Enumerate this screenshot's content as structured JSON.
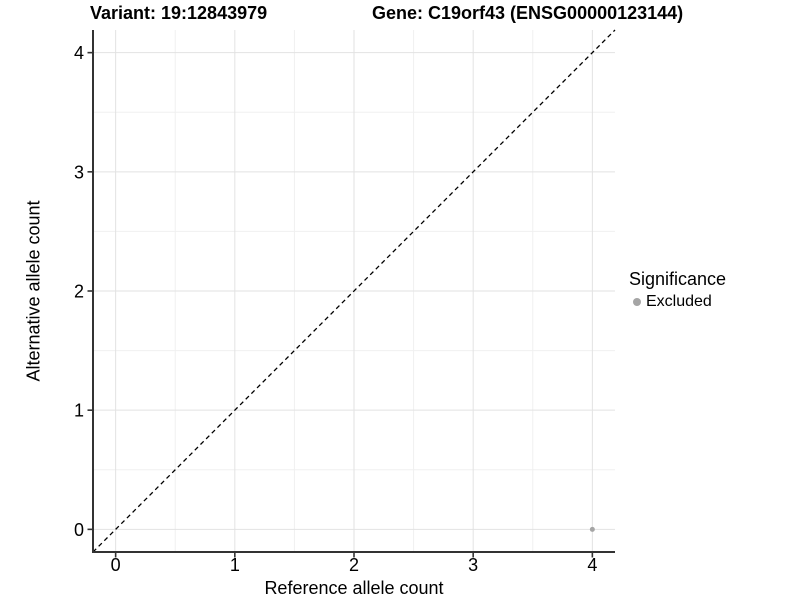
{
  "chart_data": {
    "type": "scatter",
    "title_left": "Variant: 19:12843979",
    "title_right": "Gene: C19orf43 (ENSG00000123144)",
    "xlabel": "Reference allele count",
    "ylabel": "Alternative allele count",
    "xlim": [
      -0.19,
      4.19
    ],
    "ylim": [
      -0.19,
      4.19
    ],
    "x_ticks": [
      0,
      1,
      2,
      3,
      4
    ],
    "y_ticks": [
      0,
      1,
      2,
      3,
      4
    ],
    "x_minor": [
      0.5,
      1.5,
      2.5,
      3.5
    ],
    "y_minor": [
      0.5,
      1.5,
      2.5,
      3.5
    ],
    "grid": true,
    "points": [
      {
        "x": 4,
        "y": 0,
        "group": "Excluded"
      }
    ],
    "identity_line": {
      "style": "dashed",
      "slope": 1,
      "intercept": 0
    },
    "legend": {
      "title": "Significance",
      "position": "right",
      "entries": [
        {
          "label": "Excluded",
          "color": "#a5a5a5"
        }
      ]
    },
    "style": {
      "point_color": "#a5a5a5",
      "grid_major_color": "#e2e2e2",
      "grid_minor_color": "#f0f0f0",
      "axis_color": "#333333",
      "dash_color": "#000000",
      "text_color": "#000000",
      "background": "#ffffff"
    }
  }
}
